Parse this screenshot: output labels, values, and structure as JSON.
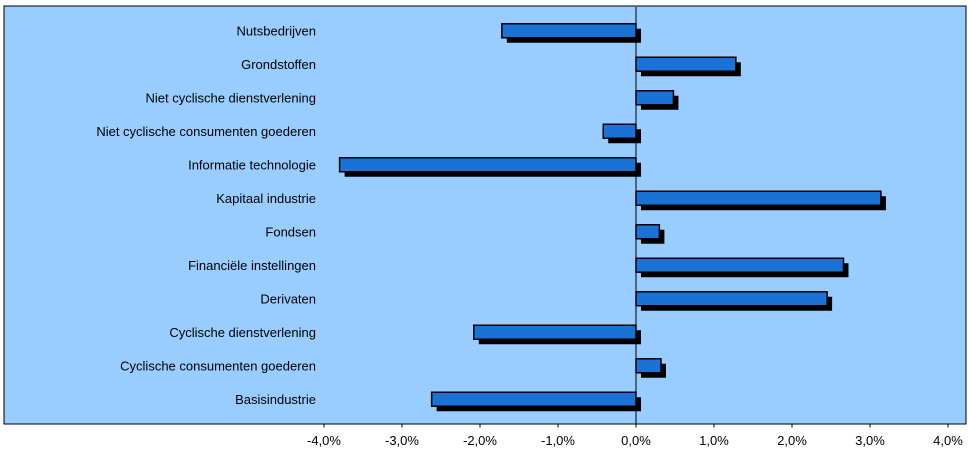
{
  "chart_data": {
    "type": "bar",
    "orientation": "horizontal",
    "categories": [
      "Nutsbedrijven",
      "Grondstoffen",
      "Niet cyclische dienstverlening",
      "Niet cyclische consumenten goederen",
      "Informatie technologie",
      "Kapitaal industrie",
      "Fondsen",
      "Financiële instellingen",
      "Derivaten",
      "Cyclische dienstverlening",
      "Cyclische consumenten goederen",
      "Basisindustrie"
    ],
    "values": [
      -1.72,
      1.28,
      0.48,
      -0.42,
      -3.8,
      3.14,
      0.3,
      2.66,
      2.45,
      -2.08,
      0.32,
      -2.62
    ],
    "xlim": [
      -4.0,
      4.0
    ],
    "xticks": [
      -4.0,
      -3.0,
      -2.0,
      -1.0,
      0.0,
      1.0,
      2.0,
      3.0,
      4.0
    ],
    "xtick_labels": [
      "-4,0%",
      "-3,0%",
      "-2,0%",
      "-1,0%",
      "0,0%",
      "1,0%",
      "2,0%",
      "3,0%",
      "4,0%"
    ],
    "title": "",
    "xlabel": "",
    "ylabel": "",
    "grid": false,
    "legend": "none",
    "colors": {
      "plot_background": "#99ccff",
      "bar_fill": "#1a72d6",
      "bar_shadow": "#000000",
      "axis": "#000000"
    }
  }
}
